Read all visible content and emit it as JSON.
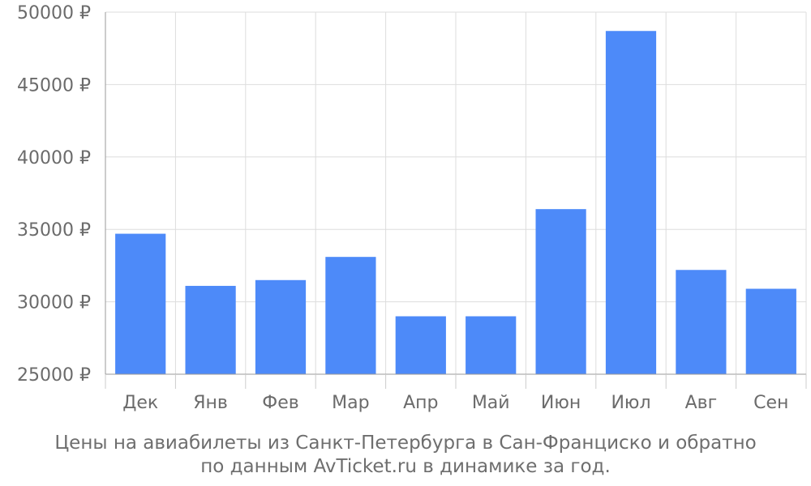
{
  "chart_data": {
    "type": "bar",
    "categories": [
      "Дек",
      "Янв",
      "Фев",
      "Мар",
      "Апр",
      "Май",
      "Июн",
      "Июл",
      "Авг",
      "Сен"
    ],
    "values": [
      34700,
      31100,
      31500,
      33100,
      29000,
      29000,
      36400,
      48700,
      32200,
      30900
    ],
    "ylim": [
      25000,
      50000
    ],
    "yticks": [
      25000,
      30000,
      35000,
      40000,
      45000,
      50000
    ],
    "ytick_labels": [
      "25000 ₽",
      "30000 ₽",
      "35000 ₽",
      "40000 ₽",
      "45000 ₽",
      "50000 ₽"
    ],
    "bar_color": "#4d8af9",
    "grid": true,
    "caption_line1": "Цены на авиабилеты из Санкт-Петербурга в Сан-Франциско и обратно",
    "caption_line2": "по данным AvTicket.ru в динамике за год."
  }
}
